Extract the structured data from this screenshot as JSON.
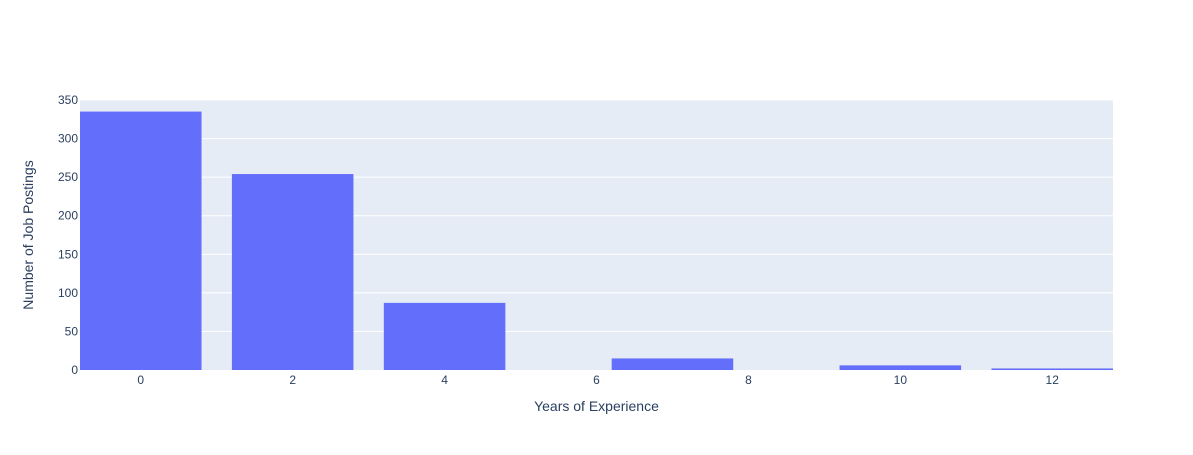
{
  "chart_data": {
    "type": "bar",
    "x": [
      0,
      2,
      4,
      7,
      10,
      12
    ],
    "values": [
      335,
      254,
      87,
      15,
      6,
      2
    ],
    "xlabel": "Years of Experience",
    "ylabel": "Number of Job Postings",
    "xlim": [
      -0.8,
      12.8
    ],
    "ylim": [
      0,
      350
    ],
    "x_ticks": [
      "0",
      "2",
      "4",
      "6",
      "8",
      "10",
      "12"
    ],
    "y_ticks": [
      "0",
      "50",
      "100",
      "150",
      "200",
      "250",
      "300",
      "350"
    ],
    "grid": true,
    "legend": "none",
    "colors": {
      "bar": "#636efa",
      "plot_background": "#e5ecf6",
      "grid": "#ffffff",
      "text": "#2a3f5f"
    }
  }
}
